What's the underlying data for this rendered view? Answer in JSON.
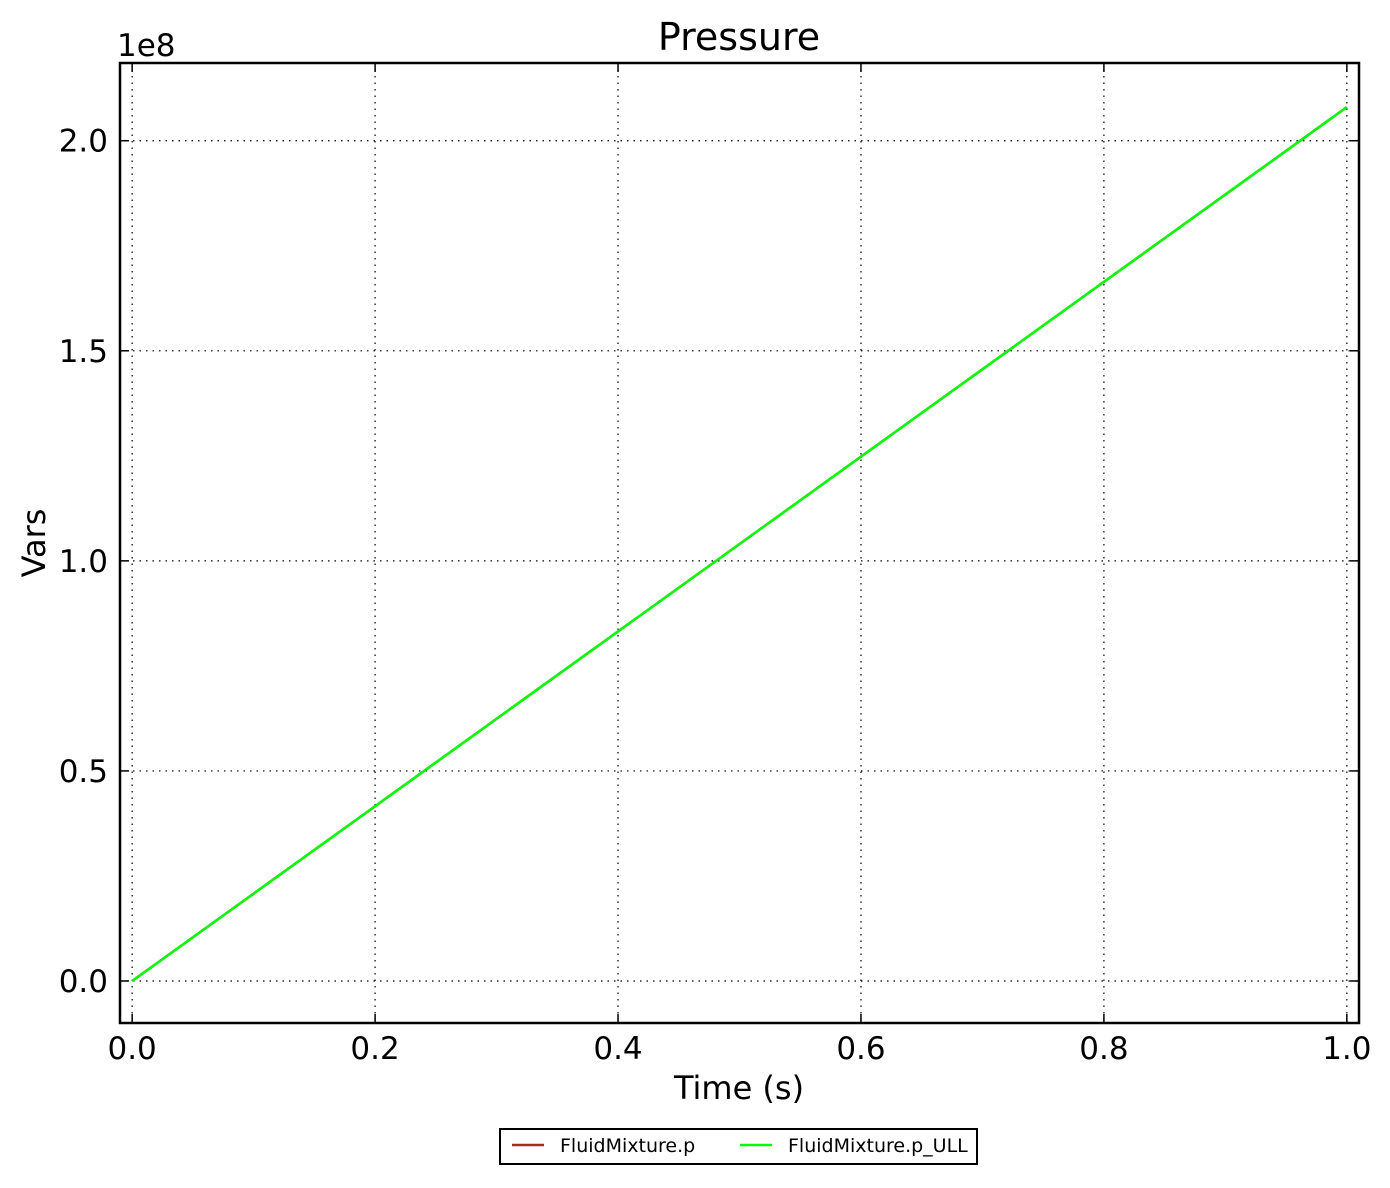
{
  "chart_data": {
    "type": "line",
    "title": "Pressure",
    "xlabel": "Time (s)",
    "ylabel": "Vars",
    "y_offset_label": "1e8",
    "xlim": [
      -0.01,
      1.01
    ],
    "ylim": [
      -0.1,
      2.185
    ],
    "xticks": [
      0.0,
      0.2,
      0.4,
      0.6,
      0.8,
      1.0
    ],
    "xtick_labels": [
      "0.0",
      "0.2",
      "0.4",
      "0.6",
      "0.8",
      "1.0"
    ],
    "yticks": [
      0.0,
      0.5,
      1.0,
      1.5,
      2.0
    ],
    "ytick_labels": [
      "0.0",
      "0.5",
      "1.0",
      "1.5",
      "2.0"
    ],
    "grid": true,
    "legend_position": "bottom-center, below axes",
    "series": [
      {
        "name": "FluidMixture.p",
        "color": "#a52a2a",
        "x": [
          0.0,
          0.2,
          0.4,
          0.6,
          0.8,
          1.0
        ],
        "y": [
          0.0,
          0.416,
          0.832,
          1.248,
          1.664,
          2.08
        ]
      },
      {
        "name": "FluidMixture.p_ULL",
        "color": "#00ff00",
        "x": [
          0.0,
          0.2,
          0.4,
          0.6,
          0.8,
          1.0
        ],
        "y": [
          0.0,
          0.416,
          0.832,
          1.248,
          1.664,
          2.08
        ]
      }
    ]
  }
}
